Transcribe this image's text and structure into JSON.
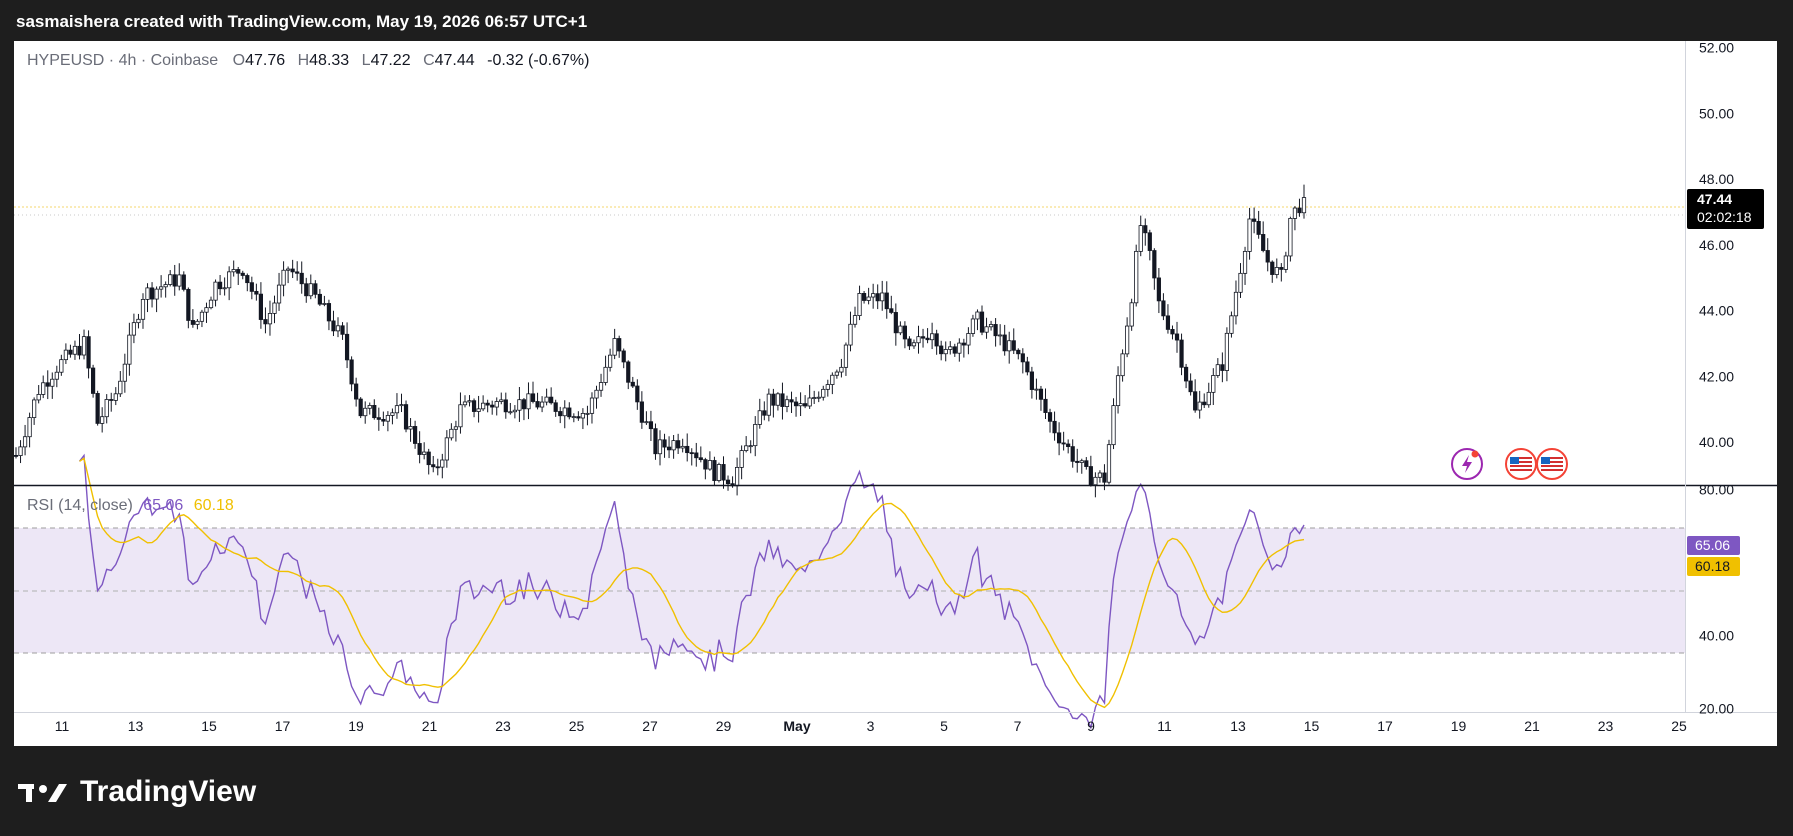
{
  "header": {
    "attribution": "sasmaishera created with TradingView.com, May 19, 2026 06:57 UTC+1"
  },
  "footer": {
    "brand": "TradingView"
  },
  "legend": {
    "symbol": "HYPEUSD · 4h · Coinbase",
    "o_label": "O",
    "o": "47.76",
    "h_label": "H",
    "h": "48.33",
    "l_label": "L",
    "l": "47.22",
    "c_label": "C",
    "c": "47.44",
    "change": "-0.32 (-0.67%)"
  },
  "rsi_legend": {
    "label": "RSI (14, close)",
    "rsi": "65.06",
    "ma": "60.18"
  },
  "price_tag": {
    "price": "47.44",
    "countdown": "02:02:18"
  },
  "rsi_tags": {
    "rsi": "65.06",
    "ma": "60.18"
  },
  "colors": {
    "background": "#1e1e1e",
    "panel": "#ffffff",
    "candle": "#131722",
    "rsi": "#7e57c2",
    "rsi_ma": "#f0c000",
    "rsi_band": "#ede7f6",
    "last_price_line": "#f5d76e",
    "price_tag_bg": "#000000",
    "rsi_tag_ma": "#f0c000"
  },
  "chart_data": [
    {
      "type": "candlestick",
      "title": "HYPEUSD · 4h · Coinbase",
      "y_axis_ticks": [
        "52.00",
        "50.00",
        "48.00",
        "46.00",
        "44.00",
        "42.00",
        "40.00"
      ],
      "ylim": [
        38.7,
        52.2
      ],
      "x_tick_labels": [
        "11",
        "13",
        "15",
        "17",
        "19",
        "21",
        "23",
        "25",
        "27",
        "29",
        "May",
        "3",
        "5",
        "7",
        "9",
        "11",
        "13",
        "15",
        "17",
        "19",
        "21",
        "23",
        "25"
      ],
      "last_price": 47.44,
      "path_points": [
        [
          0,
          39.6
        ],
        [
          5,
          41.6
        ],
        [
          9,
          42.3
        ],
        [
          15,
          43.0
        ],
        [
          18,
          40.6
        ],
        [
          22,
          41.5
        ],
        [
          28,
          44.5
        ],
        [
          36,
          45.0
        ],
        [
          39,
          43.4
        ],
        [
          44,
          44.8
        ],
        [
          50,
          45.3
        ],
        [
          55,
          43.6
        ],
        [
          60,
          45.3
        ],
        [
          66,
          44.4
        ],
        [
          72,
          43.1
        ],
        [
          76,
          40.9
        ],
        [
          85,
          40.9
        ],
        [
          92,
          39.0
        ],
        [
          98,
          41.0
        ],
        [
          106,
          41.2
        ],
        [
          114,
          41.2
        ],
        [
          126,
          40.9
        ],
        [
          132,
          43.0
        ],
        [
          134,
          42.3
        ],
        [
          141,
          39.8
        ],
        [
          147,
          40.1
        ],
        [
          154,
          39.1
        ],
        [
          158,
          38.9
        ],
        [
          166,
          41.3
        ],
        [
          174,
          41.0
        ],
        [
          182,
          42.5
        ],
        [
          186,
          44.3
        ],
        [
          191,
          44.4
        ],
        [
          197,
          42.7
        ],
        [
          202,
          43.5
        ],
        [
          205,
          42.6
        ],
        [
          212,
          43.7
        ],
        [
          218,
          43.0
        ],
        [
          222,
          42.4
        ],
        [
          228,
          40.6
        ],
        [
          236,
          39.0
        ],
        [
          240,
          38.9
        ],
        [
          243,
          42.0
        ],
        [
          246,
          44.5
        ],
        [
          248,
          46.6
        ],
        [
          250,
          45.6
        ],
        [
          252,
          44.2
        ],
        [
          256,
          43.1
        ],
        [
          260,
          40.9
        ],
        [
          266,
          42.4
        ],
        [
          272,
          46.8
        ],
        [
          276,
          45.5
        ],
        [
          279,
          45.0
        ],
        [
          281,
          46.8
        ],
        [
          284,
          47.44
        ]
      ]
    },
    {
      "type": "line",
      "title": "RSI (14, close)",
      "y_axis_ticks": [
        "80.00",
        "60.00",
        "40.00",
        "20.00"
      ],
      "ylim": [
        19,
        81
      ],
      "bands": {
        "upper": 70,
        "middle": 50,
        "lower": 30
      },
      "series": [
        {
          "name": "RSI",
          "color": "#7e57c2",
          "last": 65.06
        },
        {
          "name": "",
          "color": "#f0c000",
          "last": 60.18
        }
      ]
    }
  ]
}
